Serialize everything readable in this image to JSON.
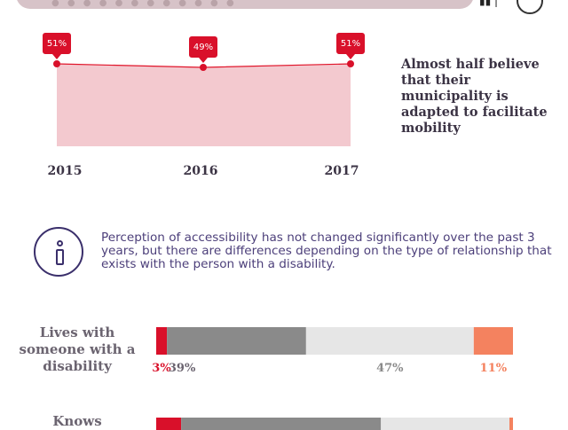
{
  "header": {
    "icons": [
      "bar-chart-icon",
      "circle-icon"
    ]
  },
  "headline": "Almost half believe that their municipality is adapted to facilitate mobility",
  "info": {
    "icon": "info-icon",
    "text": "Perception of accessibility has not changed significantly over the past 3 years, but there are differences depending on the type of relationship that exists with the person with a disability."
  },
  "colors": {
    "area_fill": "#f3c9cf",
    "line": "#e0152a",
    "marker": "#d9102a",
    "seg1": "#d9102a",
    "seg2": "#8a8a8a",
    "seg3": "#e6e6e6",
    "seg4": "#f4825f"
  },
  "chart_data": [
    {
      "type": "area",
      "x": [
        "2015",
        "2016",
        "2017"
      ],
      "values": [
        51,
        49,
        51
      ],
      "data_labels": [
        "51%",
        "49%",
        "51%"
      ],
      "title": "",
      "xlabel": "",
      "ylabel": ""
    },
    {
      "type": "bar",
      "orientation": "horizontal",
      "stacked": true,
      "categories": [
        "Lives with someone with a disability",
        "Knows"
      ],
      "series": [
        {
          "values": [
            3,
            7
          ],
          "color": "#d9102a"
        },
        {
          "values": [
            39,
            56
          ],
          "color": "#8a8a8a"
        },
        {
          "values": [
            47,
            36
          ],
          "color": "#e6e6e6"
        },
        {
          "values": [
            11,
            1
          ],
          "color": "#f4825f"
        }
      ],
      "data_labels": [
        [
          "3%",
          "39%",
          "47%",
          "11%"
        ]
      ],
      "label_colors": [
        "#d9102a",
        "#6b6470",
        "#8a8a8a",
        "#f4825f"
      ]
    }
  ]
}
